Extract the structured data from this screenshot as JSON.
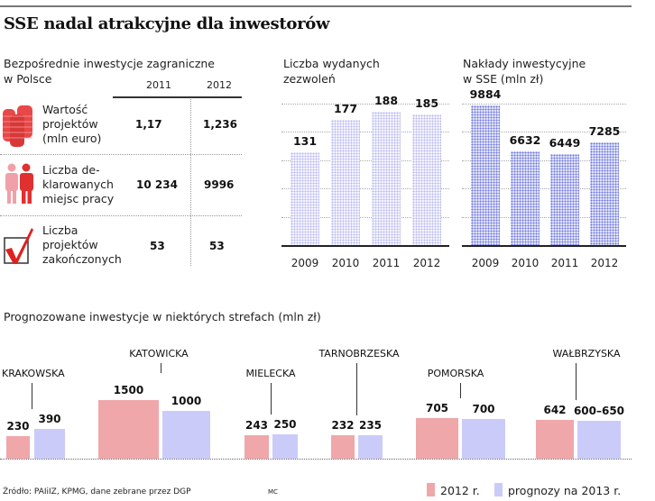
{
  "title": "SSE nadal atrakcyjne dla inwestorów",
  "fdi_table": {
    "title": "Bezpośrednie inwestycje zagraniczne w Polsce",
    "title_line1": "Bezpośrednie inwestycje zagraniczne",
    "title_line2": "w Polsce",
    "years": [
      "2011",
      "2012"
    ],
    "rows": [
      {
        "icon": "coins-stack-icon",
        "label_lines": [
          "Wartość",
          "projektów",
          "(mln euro)"
        ],
        "values": [
          "1,17",
          "1,236"
        ]
      },
      {
        "icon": "people-icon",
        "label_lines": [
          "Liczba de-",
          "klarowanych",
          "miejsc pracy"
        ],
        "values": [
          "10 234",
          "9996"
        ]
      },
      {
        "icon": "checkmark-icon",
        "label_lines": [
          "Liczba",
          "projektów",
          "zakończonych"
        ],
        "values": [
          "53",
          "53"
        ]
      }
    ]
  },
  "chart_data": [
    {
      "type": "bar",
      "title": "Liczba wydanych zezwoleń",
      "title_lines": [
        "Liczba wydanych",
        "zezwoleń"
      ],
      "categories": [
        "2009",
        "2010",
        "2011",
        "2012"
      ],
      "values": [
        131,
        177,
        188,
        185
      ],
      "labels": [
        "131",
        "177",
        "188",
        "185"
      ],
      "ylim": [
        0,
        200
      ],
      "grid": true,
      "color": "#b8b8f0"
    },
    {
      "type": "bar",
      "title": "Nakłady inwestycyjne w SSE (mln zł)",
      "title_lines": [
        "Nakłady inwestycyjne",
        "w SSE (mln zł)"
      ],
      "categories": [
        "2009",
        "2010",
        "2011",
        "2012"
      ],
      "values": [
        9884,
        6632,
        6449,
        7285
      ],
      "labels": [
        "9884",
        "6632",
        "6449",
        "7285"
      ],
      "ylim": [
        0,
        10000
      ],
      "grid": true,
      "color": "#6f78dc"
    },
    {
      "type": "bar",
      "title": "Prognozowane inwestycje w niektórych strefach (mln zł)",
      "categories": [
        "KRAKOWSKA",
        "KATOWICKA",
        "MIELECKA",
        "TARNOBRZESKA",
        "POMORSKA",
        "WAŁBRZYSKA"
      ],
      "series": [
        {
          "name": "2012 r.",
          "values": [
            230,
            1500,
            243,
            232,
            705,
            642
          ],
          "labels": [
            "230",
            "1500",
            "243",
            "232",
            "705",
            "642"
          ],
          "color": "#f0a7aa"
        },
        {
          "name": "prognozy na 2013 r.",
          "values": [
            390,
            1000,
            250,
            235,
            700,
            625
          ],
          "labels": [
            "390",
            "1000",
            "250",
            "235",
            "700",
            "600–650"
          ],
          "color": "#cbcbfa"
        }
      ],
      "legend": "bottom-right"
    }
  ],
  "footer": {
    "source": "Źródło: PAIiIZ, KPMG, dane zebrane przez DGP",
    "author": "MC"
  }
}
